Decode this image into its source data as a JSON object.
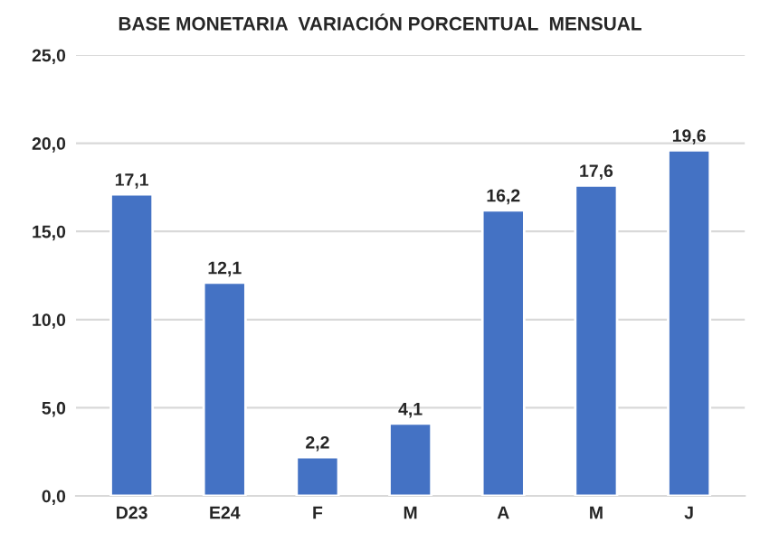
{
  "chart_data": {
    "type": "bar",
    "title": "BASE MONETARIA  VARIACIÓN PORCENTUAL  MENSUAL",
    "categories": [
      "D23",
      "E24",
      "F",
      "M",
      "A",
      "M",
      "J"
    ],
    "values": [
      17.1,
      12.1,
      2.2,
      4.1,
      16.2,
      17.6,
      19.6
    ],
    "value_labels": [
      "17,1",
      "12,1",
      "2,2",
      "4,1",
      "16,2",
      "17,6",
      "19,6"
    ],
    "color": "#4472c4",
    "ylim": [
      0,
      25
    ],
    "yticks": [
      {
        "value": 0,
        "label": "0,0"
      },
      {
        "value": 5,
        "label": "5,0"
      },
      {
        "value": 10,
        "label": "10,0"
      },
      {
        "value": 15,
        "label": "15,0"
      },
      {
        "value": 20,
        "label": "20,0"
      },
      {
        "value": 25,
        "label": "25,0"
      }
    ],
    "grid": "y"
  }
}
